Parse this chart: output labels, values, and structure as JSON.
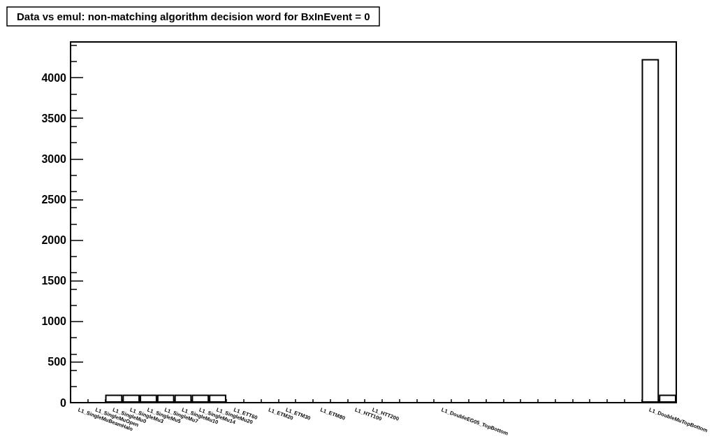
{
  "chart_data": {
    "type": "bar",
    "title": "Data vs emul: non-matching algorithm decision word for BxInEvent = 0",
    "categories": [
      "L1_SingleMuBeamHalo",
      "L1_SingleMuOpen",
      "L1_SingleMu0",
      "L1_SingleMu3",
      "L1_SingleMu5",
      "L1_SingleMu7",
      "L1_SingleMu10",
      "L1_SingleMu14",
      "L1_SingleMu20",
      "L1_ETT60",
      null,
      "L1_ETM20",
      "L1_ETM30",
      null,
      "L1_ETM80",
      null,
      "L1_HTT100",
      "L1_HTT200",
      null,
      null,
      null,
      "L1_DoubleEG05_TopBottom",
      null,
      null,
      null,
      null,
      null,
      null,
      null,
      null,
      null,
      null,
      null,
      "L1_DoubleMuTopBottom",
      null
    ],
    "values": [
      0,
      0,
      100,
      100,
      100,
      100,
      100,
      100,
      100,
      0,
      0,
      0,
      0,
      0,
      0,
      0,
      0,
      0,
      0,
      0,
      0,
      0,
      0,
      0,
      0,
      0,
      0,
      0,
      0,
      0,
      0,
      0,
      0,
      4230,
      100
    ],
    "color": "#000000",
    "ylim": [
      0,
      4440
    ],
    "yticks": [
      0,
      500,
      1000,
      1500,
      2000,
      2500,
      3000,
      3500,
      4000
    ],
    "grid": false
  }
}
